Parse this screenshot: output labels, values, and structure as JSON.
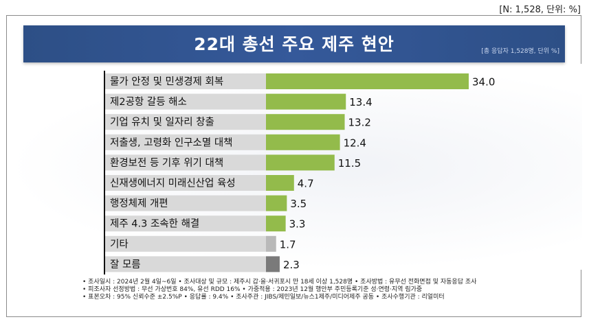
{
  "header": {
    "note": "[N: 1,528,  단위: %]"
  },
  "banner": {
    "title": "22대 총선 주요 제주 현안",
    "subtitle": "[총 응답자 1,528명, 단위 %]"
  },
  "colors": {
    "green": "#93bb4b",
    "gray": "#b9b9b9",
    "dark_gray": "#7a7a7a",
    "label_bg": "#d9d9d9",
    "banner": "#2f528f"
  },
  "chart_data": {
    "type": "bar",
    "orientation": "horizontal",
    "title": "22대 총선 주요 제주 현안",
    "categories": [
      "물가 안정 및 민생경제 회복",
      "제2공항 갈등 해소",
      "기업 유치 및 일자리 창출",
      "저출생, 고령화 인구소멸 대책",
      "환경보전 등 기후 위기 대책",
      "신재생에너지 미래신산업 육성",
      "행정체제 개편",
      "제주 4.3 조속한 해결",
      "기타",
      "잘 모름"
    ],
    "values": [
      34.0,
      13.4,
      13.2,
      12.4,
      11.5,
      4.7,
      3.5,
      3.3,
      1.7,
      2.3
    ],
    "value_labels": [
      "34.0",
      "13.4",
      "13.2",
      "12.4",
      "11.5",
      "4.7",
      "3.5",
      "3.3",
      "1.7",
      "2.3"
    ],
    "bar_colors": [
      "green",
      "green",
      "green",
      "green",
      "green",
      "green",
      "green",
      "green",
      "gray",
      "dark_gray"
    ],
    "xlim": [
      0,
      34
    ]
  },
  "footnotes": [
    "• 조사일시 : 2024년 2월 4일~6일  • 조사대상 및 규모 : 제주시 갑·을·서귀포시 만 18세 이상 1,528명  • 조사방법 : 유무선 전화면접 및 자동응답 조사",
    "• 피조사자 선정방법 : 무선 가상번호 84%, 유선 RDD 16%   • 가중적용 : 2023년 12월 행안부 주민등록기준 성·연령·지역 림가중",
    "• 표본오차 : 95% 신뢰수준 ±2.5%P  • 응답률 : 9.4%  • 조사주관 : JIBS/제민일보/뉴스1제주/미디어제주 공동   • 조사수행기관 : 리얼미터"
  ]
}
